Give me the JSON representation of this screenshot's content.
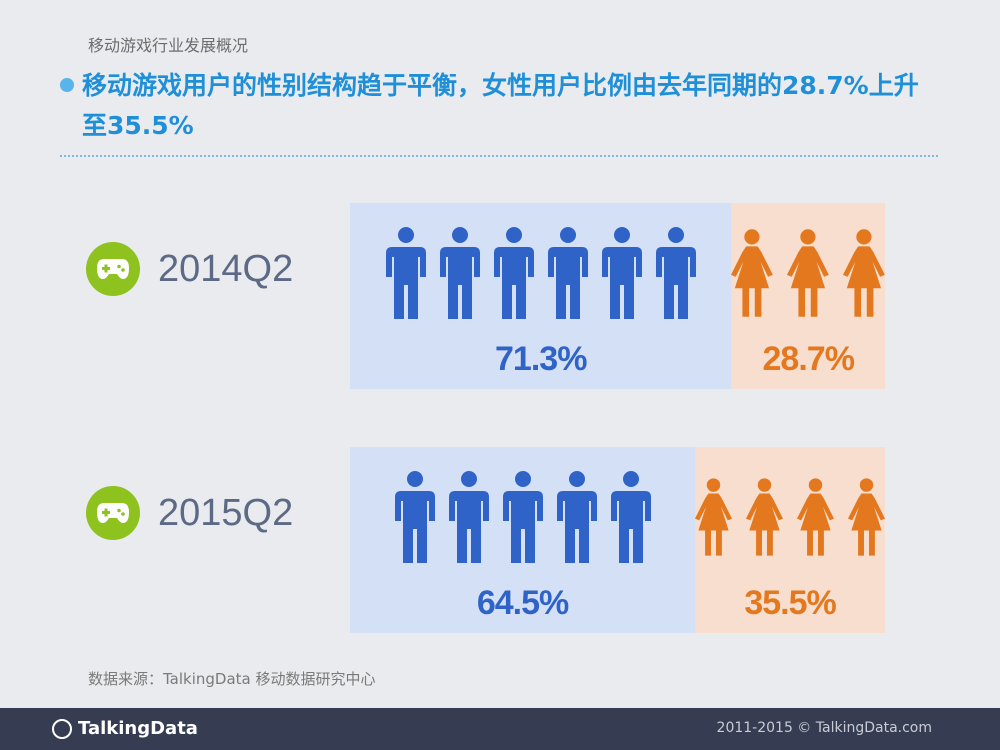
{
  "section_title": "移动游戏行业发展概况",
  "headline": "移动游戏用户的性别结构趋于平衡，女性用户比例由去年同期的28.7%上升至35.5%",
  "source": "数据来源：TalkingData 移动数据研究中心",
  "footer": {
    "logo": "TalkingData",
    "copyright": "2011-2015 © TalkingData.com"
  },
  "colors": {
    "male": "#2f63c8",
    "female": "#e4781e",
    "badge": "#8dc21f"
  },
  "icons": {
    "badge": "gamepad-icon",
    "male": "male-person-icon",
    "female": "female-person-icon"
  },
  "chart_data": {
    "type": "bar",
    "orientation": "horizontal-stacked-100",
    "categories": [
      "2014Q2",
      "2015Q2"
    ],
    "series": [
      {
        "values": [
          71.3,
          64.5
        ],
        "labels": [
          "71.3%",
          "64.5%"
        ],
        "icon_counts": [
          6,
          5
        ]
      },
      {
        "values": [
          28.7,
          35.5
        ],
        "labels": [
          "28.7%",
          "35.5%"
        ],
        "icon_counts": [
          3,
          4
        ]
      }
    ]
  }
}
